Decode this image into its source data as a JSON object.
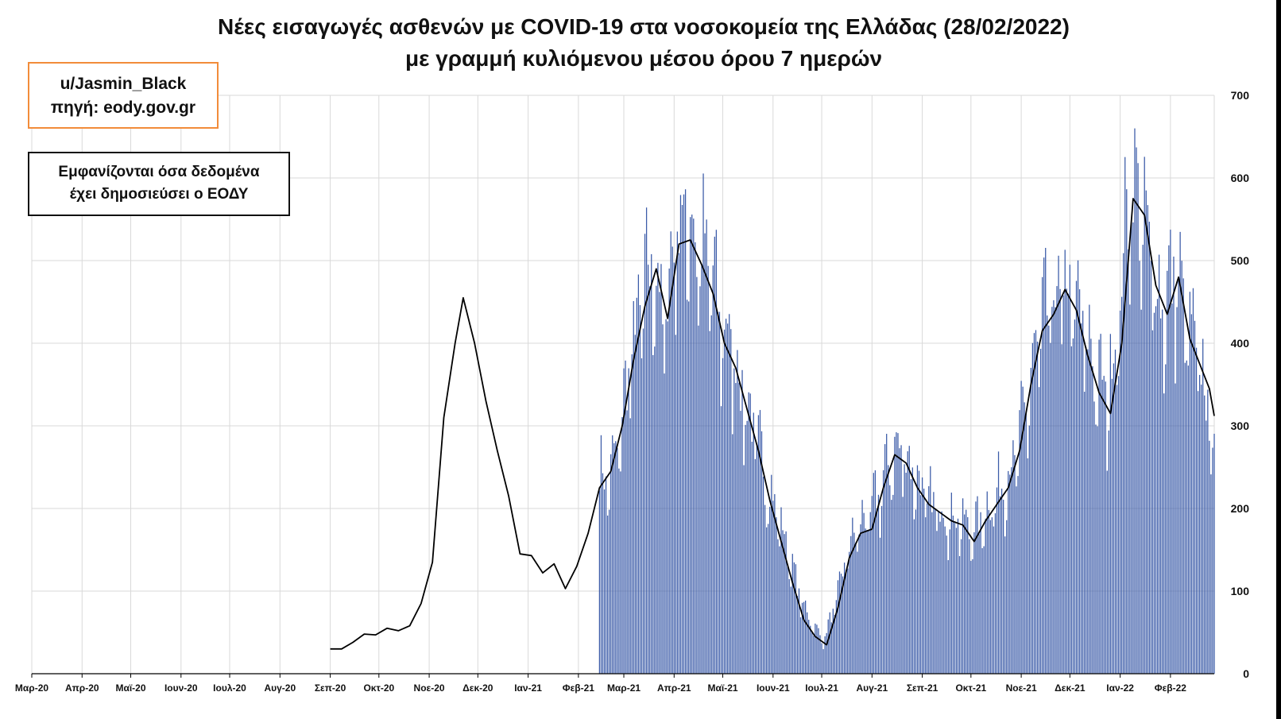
{
  "title": {
    "line1": "Νέες εισαγωγές ασθενών με COVID-19 στα νοσοκομεία της Ελλάδας (28/02/2022)",
    "line2": "με γραμμή κυλιόμενου μέσου όρου 7 ημερών"
  },
  "credit": {
    "author": "u/Jasmin_Black",
    "source": "πηγή: eody.gov.gr"
  },
  "note": {
    "line1": "Εμφανίζονται όσα δεδομένα",
    "line2": "έχει δημοσιεύσει ο ΕΟΔΥ"
  },
  "colors": {
    "bars": "#3b5ba8",
    "line": "#000000",
    "grid": "#d9d9d9",
    "credit_border": "#f28c3a"
  },
  "chart_data": {
    "type": "bar",
    "y_axis_position": "right",
    "ylim": [
      0,
      700
    ],
    "yticks": [
      0,
      100,
      200,
      300,
      400,
      500,
      600,
      700
    ],
    "grid": true,
    "x_start": "2020-03-01",
    "x_end": "2022-02-28",
    "month_ticks": [
      {
        "label": "Μαρ-20",
        "date": "2020-03-01"
      },
      {
        "label": "Απρ-20",
        "date": "2020-04-01"
      },
      {
        "label": "Μαϊ-20",
        "date": "2020-05-01"
      },
      {
        "label": "Ιουν-20",
        "date": "2020-06-01"
      },
      {
        "label": "Ιουλ-20",
        "date": "2020-07-01"
      },
      {
        "label": "Αυγ-20",
        "date": "2020-08-01"
      },
      {
        "label": "Σεπ-20",
        "date": "2020-09-01"
      },
      {
        "label": "Οκτ-20",
        "date": "2020-10-01"
      },
      {
        "label": "Νοε-20",
        "date": "2020-11-01"
      },
      {
        "label": "Δεκ-20",
        "date": "2020-12-01"
      },
      {
        "label": "Ιαν-21",
        "date": "2021-01-01"
      },
      {
        "label": "Φεβ-21",
        "date": "2021-02-01"
      },
      {
        "label": "Μαρ-21",
        "date": "2021-03-01"
      },
      {
        "label": "Απρ-21",
        "date": "2021-04-01"
      },
      {
        "label": "Μαϊ-21",
        "date": "2021-05-01"
      },
      {
        "label": "Ιουν-21",
        "date": "2021-06-01"
      },
      {
        "label": "Ιουλ-21",
        "date": "2021-07-01"
      },
      {
        "label": "Αυγ-21",
        "date": "2021-08-01"
      },
      {
        "label": "Σεπ-21",
        "date": "2021-09-01"
      },
      {
        "label": "Οκτ-21",
        "date": "2021-10-01"
      },
      {
        "label": "Νοε-21",
        "date": "2021-11-01"
      },
      {
        "label": "Δεκ-21",
        "date": "2021-12-01"
      },
      {
        "label": "Ιαν-22",
        "date": "2022-01-01"
      },
      {
        "label": "Φεβ-22",
        "date": "2022-02-01"
      }
    ],
    "bars_daily_approx": {
      "start": "2021-02-14",
      "end": "2022-02-28",
      "anchors": [
        [
          "2021-02-14",
          240
        ],
        [
          "2021-02-20",
          230
        ],
        [
          "2021-02-27",
          290
        ],
        [
          "2021-03-05",
          380
        ],
        [
          "2021-03-12",
          450
        ],
        [
          "2021-03-19",
          490
        ],
        [
          "2021-03-26",
          420
        ],
        [
          "2021-04-02",
          540
        ],
        [
          "2021-04-09",
          550
        ],
        [
          "2021-04-16",
          510
        ],
        [
          "2021-04-23",
          490
        ],
        [
          "2021-04-30",
          420
        ],
        [
          "2021-05-07",
          390
        ],
        [
          "2021-05-14",
          330
        ],
        [
          "2021-05-21",
          290
        ],
        [
          "2021-05-28",
          230
        ],
        [
          "2021-06-04",
          190
        ],
        [
          "2021-06-11",
          140
        ],
        [
          "2021-06-18",
          90
        ],
        [
          "2021-06-25",
          60
        ],
        [
          "2021-07-02",
          40
        ],
        [
          "2021-07-09",
          80
        ],
        [
          "2021-07-16",
          140
        ],
        [
          "2021-07-23",
          175
        ],
        [
          "2021-07-30",
          190
        ],
        [
          "2021-08-06",
          220
        ],
        [
          "2021-08-13",
          260
        ],
        [
          "2021-08-20",
          270
        ],
        [
          "2021-08-27",
          240
        ],
        [
          "2021-09-03",
          210
        ],
        [
          "2021-09-10",
          200
        ],
        [
          "2021-09-17",
          190
        ],
        [
          "2021-09-24",
          185
        ],
        [
          "2021-10-01",
          170
        ],
        [
          "2021-10-08",
          185
        ],
        [
          "2021-10-15",
          210
        ],
        [
          "2021-10-22",
          230
        ],
        [
          "2021-10-29",
          260
        ],
        [
          "2021-11-05",
          330
        ],
        [
          "2021-11-12",
          410
        ],
        [
          "2021-11-19",
          440
        ],
        [
          "2021-11-26",
          460
        ],
        [
          "2021-12-03",
          450
        ],
        [
          "2021-12-10",
          410
        ],
        [
          "2021-12-17",
          360
        ],
        [
          "2021-12-24",
          330
        ],
        [
          "2021-12-31",
          420
        ],
        [
          "2022-01-07",
          600
        ],
        [
          "2022-01-14",
          560
        ],
        [
          "2022-01-21",
          480
        ],
        [
          "2022-01-28",
          440
        ],
        [
          "2022-02-04",
          480
        ],
        [
          "2022-02-11",
          420
        ],
        [
          "2022-02-18",
          380
        ],
        [
          "2022-02-28",
          280
        ]
      ]
    },
    "series": [
      {
        "name": "",
        "type": "line",
        "points": [
          [
            "2020-09-01",
            30
          ],
          [
            "2020-09-08",
            30
          ],
          [
            "2020-09-15",
            38
          ],
          [
            "2020-09-22",
            48
          ],
          [
            "2020-09-29",
            47
          ],
          [
            "2020-10-06",
            55
          ],
          [
            "2020-10-13",
            52
          ],
          [
            "2020-10-20",
            58
          ],
          [
            "2020-10-27",
            85
          ],
          [
            "2020-11-03",
            135
          ],
          [
            "2020-11-10",
            310
          ],
          [
            "2020-11-17",
            400
          ],
          [
            "2020-11-22",
            455
          ],
          [
            "2020-11-29",
            400
          ],
          [
            "2020-12-06",
            330
          ],
          [
            "2020-12-13",
            270
          ],
          [
            "2020-12-20",
            215
          ],
          [
            "2020-12-27",
            145
          ],
          [
            "2021-01-03",
            143
          ],
          [
            "2021-01-10",
            122
          ],
          [
            "2021-01-17",
            133
          ],
          [
            "2021-01-24",
            103
          ],
          [
            "2021-01-31",
            130
          ],
          [
            "2021-02-07",
            170
          ],
          [
            "2021-02-14",
            225
          ],
          [
            "2021-02-21",
            245
          ],
          [
            "2021-02-28",
            300
          ],
          [
            "2021-03-07",
            380
          ],
          [
            "2021-03-14",
            445
          ],
          [
            "2021-03-21",
            490
          ],
          [
            "2021-03-28",
            430
          ],
          [
            "2021-04-04",
            520
          ],
          [
            "2021-04-11",
            525
          ],
          [
            "2021-04-18",
            495
          ],
          [
            "2021-04-25",
            460
          ],
          [
            "2021-05-02",
            400
          ],
          [
            "2021-05-09",
            370
          ],
          [
            "2021-05-16",
            320
          ],
          [
            "2021-05-23",
            270
          ],
          [
            "2021-05-30",
            210
          ],
          [
            "2021-06-06",
            160
          ],
          [
            "2021-06-13",
            110
          ],
          [
            "2021-06-20",
            65
          ],
          [
            "2021-06-27",
            45
          ],
          [
            "2021-07-04",
            35
          ],
          [
            "2021-07-11",
            80
          ],
          [
            "2021-07-18",
            140
          ],
          [
            "2021-07-25",
            170
          ],
          [
            "2021-08-01",
            175
          ],
          [
            "2021-08-08",
            225
          ],
          [
            "2021-08-15",
            265
          ],
          [
            "2021-08-22",
            255
          ],
          [
            "2021-08-29",
            225
          ],
          [
            "2021-09-05",
            205
          ],
          [
            "2021-09-12",
            195
          ],
          [
            "2021-09-19",
            185
          ],
          [
            "2021-09-26",
            180
          ],
          [
            "2021-10-03",
            160
          ],
          [
            "2021-10-10",
            185
          ],
          [
            "2021-10-17",
            205
          ],
          [
            "2021-10-24",
            225
          ],
          [
            "2021-10-31",
            270
          ],
          [
            "2021-11-07",
            350
          ],
          [
            "2021-11-14",
            415
          ],
          [
            "2021-11-21",
            435
          ],
          [
            "2021-11-28",
            465
          ],
          [
            "2021-12-05",
            440
          ],
          [
            "2021-12-12",
            385
          ],
          [
            "2021-12-19",
            340
          ],
          [
            "2021-12-26",
            315
          ],
          [
            "2022-01-02",
            400
          ],
          [
            "2022-01-09",
            575
          ],
          [
            "2022-01-16",
            555
          ],
          [
            "2022-01-23",
            470
          ],
          [
            "2022-01-30",
            435
          ],
          [
            "2022-02-06",
            480
          ],
          [
            "2022-02-13",
            405
          ],
          [
            "2022-02-20",
            370
          ],
          [
            "2022-02-25",
            345
          ],
          [
            "2022-02-28",
            312
          ]
        ]
      }
    ]
  }
}
